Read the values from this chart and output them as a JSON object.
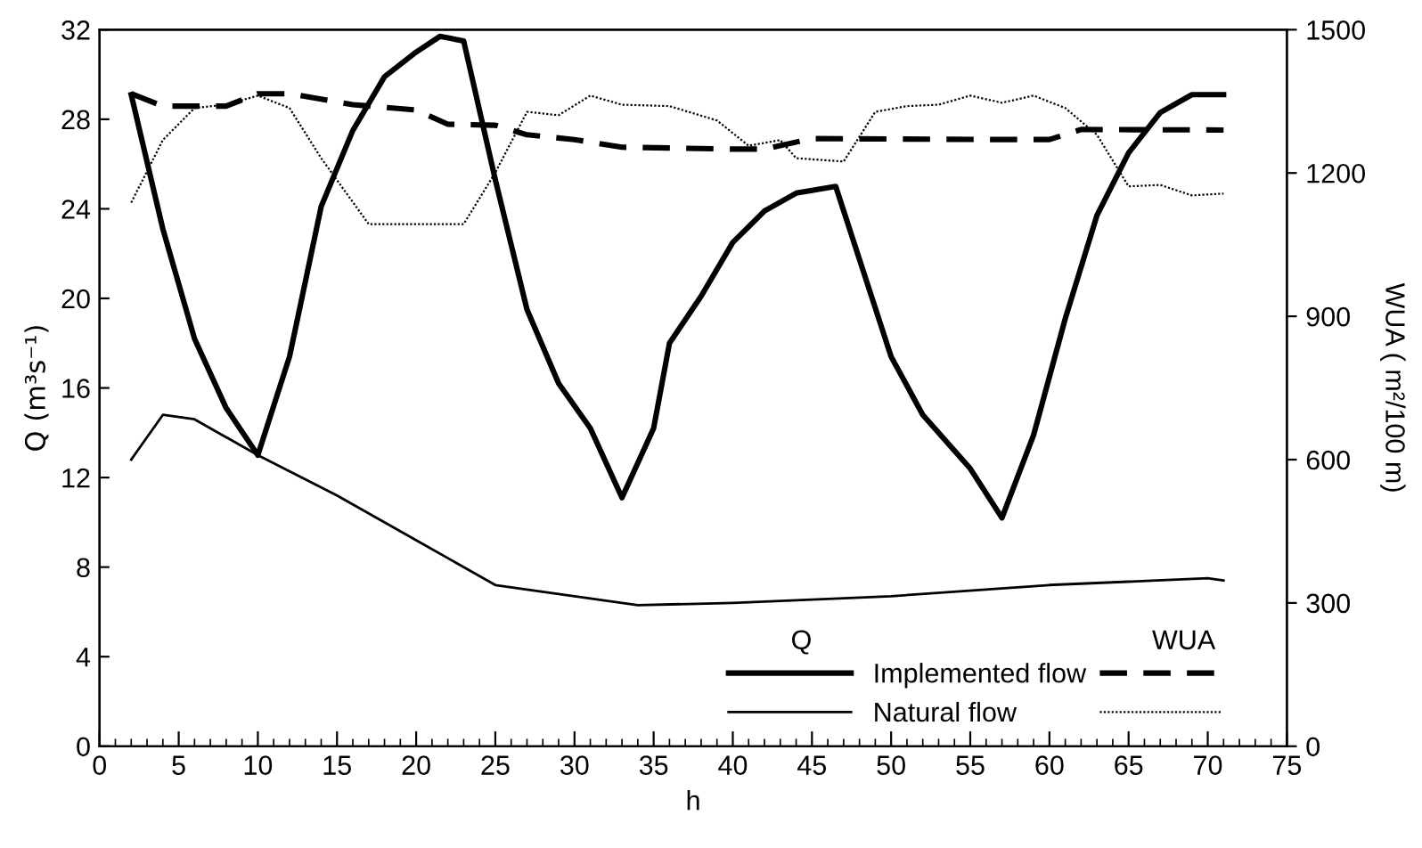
{
  "chart_data": {
    "type": "line",
    "xlabel": "h",
    "ylabel": "Q (m³s⁻¹)",
    "y2label": "WUA ( m²/100 m)",
    "xlim": [
      0,
      75
    ],
    "xticks": [
      0,
      5,
      10,
      15,
      20,
      25,
      30,
      35,
      40,
      45,
      50,
      55,
      60,
      65,
      70,
      75
    ],
    "ylim": [
      0,
      32
    ],
    "yticks": [
      0,
      4,
      8,
      12,
      16,
      20,
      24,
      28,
      32
    ],
    "y2lim": [
      0,
      1500
    ],
    "y2ticks": [
      0,
      300,
      600,
      900,
      1200,
      1500
    ],
    "grid": false,
    "legend": "bottom right",
    "annotations": [
      "Q",
      "WUA"
    ],
    "series": [
      {
        "name": "Implemented flow",
        "color": "#000000",
        "line_style": "solid",
        "x": [
          2,
          4,
          6,
          8,
          10,
          12,
          14,
          16,
          18,
          20,
          21.5,
          23,
          25,
          27,
          29,
          31,
          33,
          35,
          36,
          38,
          40,
          42,
          44,
          46.5,
          50,
          52,
          55,
          57,
          59,
          61,
          63,
          65,
          67,
          69,
          71
        ],
        "values": [
          29.1,
          23.1,
          18.2,
          15.1,
          13,
          17.4,
          24.1,
          27.5,
          29.9,
          31,
          31.7,
          31.5,
          25.3,
          19.5,
          16.2,
          14.2,
          11.1,
          14.2,
          18,
          20.1,
          22.5,
          23.9,
          24.7,
          25,
          17.4,
          14.8,
          12.4,
          10.2,
          13.9,
          19.1,
          23.7,
          26.5,
          28.3,
          29.1,
          29.1
        ]
      },
      {
        "name": "Natural flow",
        "color": "#000000",
        "line_style": "solid",
        "x": [
          2,
          4,
          6,
          10,
          15,
          20,
          25,
          30,
          34,
          40,
          50,
          60,
          70,
          71
        ],
        "values": [
          12.8,
          14.8,
          14.6,
          13,
          11.2,
          9.2,
          7.2,
          6.7,
          6.3,
          6.4,
          6.7,
          7.2,
          7.5,
          7.4
        ]
      },
      {
        "axis": "y2",
        "color": "#000000",
        "line_style": "dashed",
        "x": [
          2,
          4,
          8,
          10,
          12,
          16,
          20,
          22,
          25,
          27,
          30,
          33,
          40,
          42,
          45,
          57,
          60,
          62,
          71
        ],
        "values": [
          1366,
          1340,
          1340,
          1366,
          1366,
          1343,
          1332,
          1302,
          1300,
          1280,
          1270,
          1254,
          1250,
          1250,
          1272,
          1270,
          1270,
          1291,
          1290
        ]
      },
      {
        "axis": "y2",
        "color": "#000000",
        "line_style": "dotted",
        "x": [
          2,
          4,
          6,
          8,
          10,
          12,
          14,
          17,
          23,
          25,
          27,
          29,
          31,
          33,
          36,
          39,
          41,
          43,
          44,
          47,
          49,
          51,
          53,
          55,
          57,
          59,
          61,
          63,
          65,
          67,
          69,
          71
        ],
        "values": [
          1138,
          1269,
          1336,
          1343,
          1362,
          1336,
          1231,
          1093,
          1093,
          1201,
          1328,
          1321,
          1362,
          1343,
          1340,
          1310,
          1257,
          1269,
          1231,
          1224,
          1328,
          1340,
          1343,
          1362,
          1347,
          1362,
          1336,
          1280,
          1172,
          1175,
          1153,
          1157
        ]
      }
    ]
  }
}
